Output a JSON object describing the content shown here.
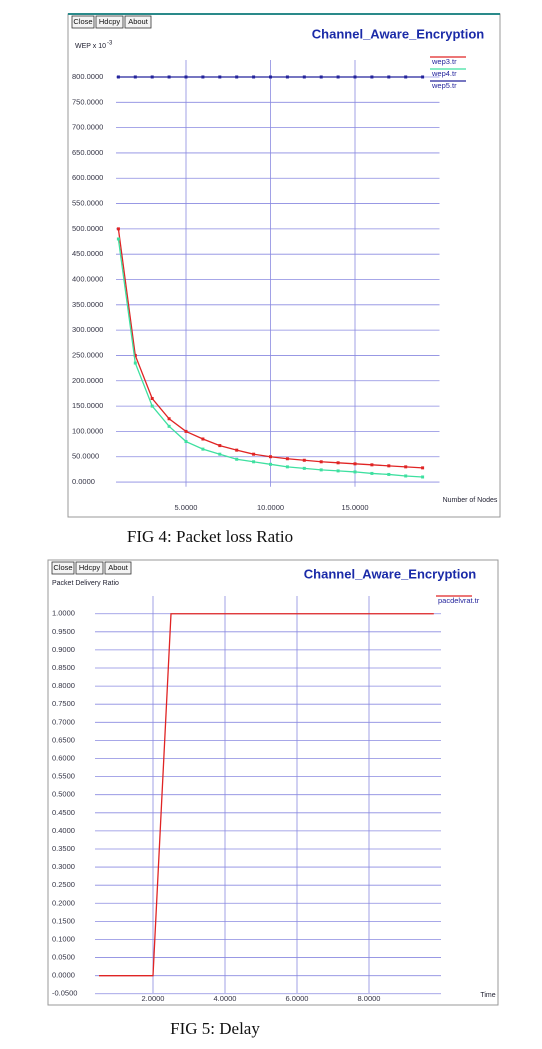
{
  "chart_data": [
    {
      "type": "line",
      "title": "Channel_Aware_Encryption",
      "buttons": [
        "Close",
        "Hdcpy",
        "About"
      ],
      "ylabel": "WEP x 10",
      "ylabel_exponent": "-3",
      "xlabel": "Number of Nodes",
      "caption": "FIG 4: Packet loss Ratio",
      "x": [
        1,
        2,
        3,
        4,
        5,
        6,
        7,
        8,
        9,
        10,
        11,
        12,
        13,
        14,
        15,
        16,
        17,
        18,
        19
      ],
      "series": [
        {
          "name": "wep3.tr",
          "color": "#e02424",
          "values": [
            500,
            250,
            165,
            125,
            100,
            85,
            72,
            63,
            55,
            50,
            46,
            43,
            40,
            38,
            36,
            34,
            32,
            30,
            28
          ]
        },
        {
          "name": "wep4.tr",
          "color": "#3ee0a0",
          "values": [
            480,
            235,
            150,
            110,
            80,
            65,
            55,
            45,
            40,
            35,
            30,
            27,
            24,
            22,
            20,
            17,
            15,
            12,
            10
          ]
        },
        {
          "name": "wep5.tr",
          "color": "#24249c",
          "values": [
            800,
            800,
            800,
            800,
            800,
            800,
            800,
            800,
            800,
            800,
            800,
            800,
            800,
            800,
            800,
            800,
            800,
            800,
            800
          ]
        }
      ],
      "markers": true,
      "xlim": [
        0,
        20
      ],
      "ylim": [
        -25,
        875
      ],
      "xticks": [
        {
          "value": 5,
          "label": "5.0000"
        },
        {
          "value": 10,
          "label": "10.0000"
        },
        {
          "value": 15,
          "label": "15.0000"
        }
      ],
      "yticks": [
        {
          "value": 0,
          "label": "0.0000"
        },
        {
          "value": 50,
          "label": "50.0000"
        },
        {
          "value": 100,
          "label": "100.0000"
        },
        {
          "value": 150,
          "label": "150.0000"
        },
        {
          "value": 200,
          "label": "200.0000"
        },
        {
          "value": 250,
          "label": "250.0000"
        },
        {
          "value": 300,
          "label": "300.0000"
        },
        {
          "value": 350,
          "label": "350.0000"
        },
        {
          "value": 400,
          "label": "400.0000"
        },
        {
          "value": 450,
          "label": "450.0000"
        },
        {
          "value": 500,
          "label": "500.0000"
        },
        {
          "value": 550,
          "label": "550.0000"
        },
        {
          "value": 600,
          "label": "600.0000"
        },
        {
          "value": 650,
          "label": "650.0000"
        },
        {
          "value": 700,
          "label": "700.0000"
        },
        {
          "value": 750,
          "label": "750.0000"
        },
        {
          "value": 800,
          "label": "800.0000"
        }
      ],
      "grid": true
    },
    {
      "type": "line",
      "title": "Channel_Aware_Encryption",
      "buttons": [
        "Close",
        "Hdcpy",
        "About"
      ],
      "ylabel": "Packet Delivery Ratio",
      "xlabel": "Time",
      "caption": "FIG 5: Delay",
      "x": [
        0.5,
        2.0,
        2.5,
        9.8
      ],
      "series": [
        {
          "name": "pacdelvrat.tr",
          "color": "#e02424",
          "values": [
            0,
            0,
            1,
            1
          ]
        }
      ],
      "markers": false,
      "xlim": [
        0,
        10
      ],
      "ylim": [
        -0.07,
        1.06
      ],
      "xticks": [
        {
          "value": 2,
          "label": "2.0000"
        },
        {
          "value": 4,
          "label": "4.0000"
        },
        {
          "value": 6,
          "label": "6.0000"
        },
        {
          "value": 8,
          "label": "8.0000"
        }
      ],
      "yticks": [
        {
          "value": -0.05,
          "label": "-0.0500"
        },
        {
          "value": 0,
          "label": "0.0000"
        },
        {
          "value": 0.05,
          "label": "0.0500"
        },
        {
          "value": 0.1,
          "label": "0.1000"
        },
        {
          "value": 0.15,
          "label": "0.1500"
        },
        {
          "value": 0.2,
          "label": "0.2000"
        },
        {
          "value": 0.25,
          "label": "0.2500"
        },
        {
          "value": 0.3,
          "label": "0.3000"
        },
        {
          "value": 0.35,
          "label": "0.3500"
        },
        {
          "value": 0.4,
          "label": "0.4000"
        },
        {
          "value": 0.45,
          "label": "0.4500"
        },
        {
          "value": 0.5,
          "label": "0.5000"
        },
        {
          "value": 0.55,
          "label": "0.5500"
        },
        {
          "value": 0.6,
          "label": "0.6000"
        },
        {
          "value": 0.65,
          "label": "0.6500"
        },
        {
          "value": 0.7,
          "label": "0.7000"
        },
        {
          "value": 0.75,
          "label": "0.7500"
        },
        {
          "value": 0.8,
          "label": "0.8000"
        },
        {
          "value": 0.85,
          "label": "0.8500"
        },
        {
          "value": 0.9,
          "label": "0.9000"
        },
        {
          "value": 0.95,
          "label": "0.9500"
        },
        {
          "value": 1,
          "label": "1.0000"
        }
      ],
      "grid": true
    }
  ]
}
